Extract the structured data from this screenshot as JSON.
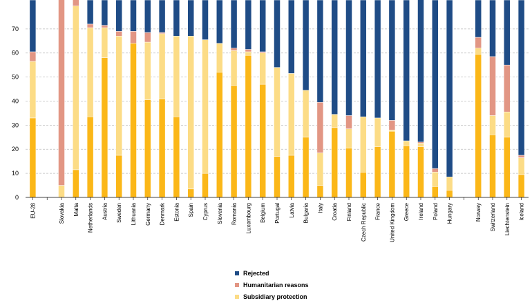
{
  "chart_data": {
    "type": "bar",
    "stacked": true,
    "title": "",
    "xlabel": "",
    "ylabel": "",
    "ylim": [
      0,
      82
    ],
    "yticks": [
      0,
      10,
      20,
      30,
      40,
      50,
      60,
      70
    ],
    "grid": true,
    "legend_position": "bottom",
    "categories": [
      "EU-28",
      "",
      "Slovakia",
      "Malta",
      "Netherlands",
      "Austria",
      "Sweden",
      "Lithuania",
      "Germany",
      "Denmark",
      "Estonia",
      "Spain",
      "Cyprus",
      "Slovenia",
      "Romania",
      "Luxembourg",
      "Belgium",
      "Portugal",
      "Latvia",
      "Bulgaria",
      "Italy",
      "Croatia",
      "Finland",
      "Czech Republic",
      "France",
      "United Kingdom",
      "Greece",
      "Ireland",
      "Poland",
      "Hungary",
      "",
      "Norway",
      "Switzerland",
      "Liechtenstein",
      "Iceland"
    ],
    "series": [
      {
        "name": "Refugee status",
        "color": "#FBB718",
        "in_legend": false,
        "values": [
          33,
          null,
          0,
          11.5,
          33.5,
          58,
          17.5,
          64,
          40.5,
          41,
          33.5,
          3.5,
          10,
          52,
          46.5,
          59,
          47,
          17,
          17.5,
          25,
          5,
          29,
          20.5,
          10.5,
          21,
          27.5,
          21.5,
          21,
          4.5,
          3,
          null,
          59.5,
          26,
          25,
          9.5
        ]
      },
      {
        "name": "Subsidiary protection",
        "color": "#FCDC86",
        "in_legend": true,
        "values": [
          23.5,
          null,
          5,
          68,
          37,
          12.5,
          49.5,
          0,
          24,
          27,
          33.5,
          63.5,
          55.5,
          12,
          14.5,
          1.5,
          13,
          37,
          34,
          19.5,
          13.5,
          5.5,
          8,
          23,
          12,
          0.5,
          2,
          1.5,
          6,
          5.5,
          null,
          2.5,
          8,
          10.5,
          7
        ]
      },
      {
        "name": "Humanitarian reasons",
        "color": "#E29684",
        "in_legend": true,
        "values": [
          4,
          null,
          78,
          3,
          1.5,
          1,
          2,
          5,
          4,
          0.5,
          0,
          0,
          0,
          0,
          1,
          1,
          0.5,
          0,
          0,
          0,
          21,
          0,
          5.5,
          0,
          0,
          4,
          0,
          0.5,
          1.5,
          0,
          null,
          4.5,
          24.5,
          19.5,
          1
        ]
      },
      {
        "name": "Rejected",
        "color": "#1F4C86",
        "in_legend": true,
        "values": [
          21.5,
          null,
          0,
          0.5,
          10,
          10.5,
          13,
          13,
          13.5,
          13.5,
          15,
          15,
          16.5,
          18,
          20,
          20.5,
          21.5,
          28,
          30.5,
          37.5,
          42.5,
          47.5,
          48,
          48.5,
          49,
          50,
          58.5,
          60,
          70,
          73.5,
          null,
          15.5,
          23.5,
          27,
          64.5
        ]
      }
    ]
  }
}
